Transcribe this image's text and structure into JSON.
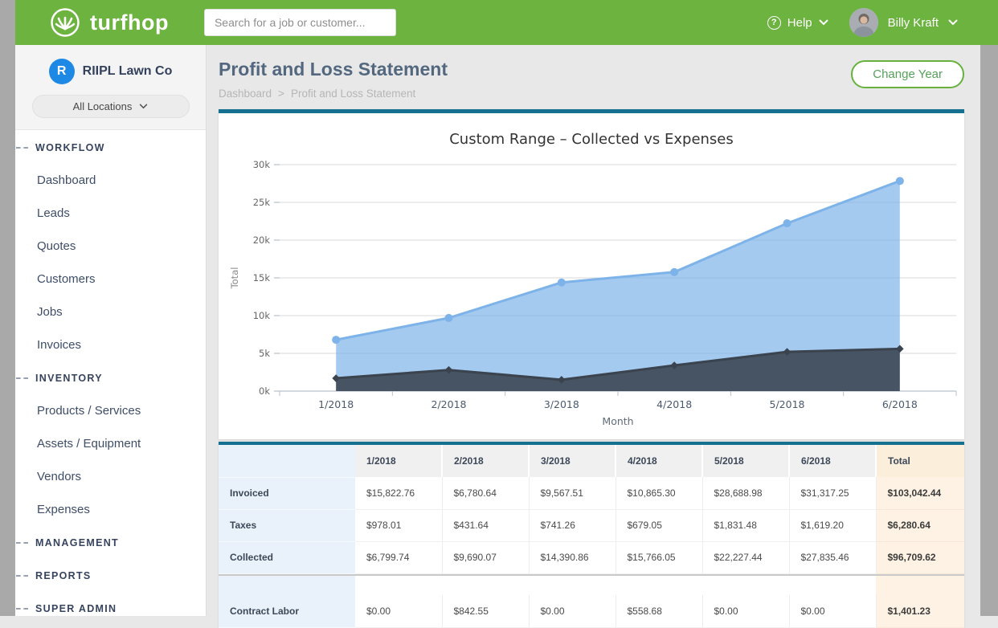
{
  "header": {
    "brand": "turfhop",
    "search_placeholder": "Search for a job or customer...",
    "help_icon": "?",
    "help_label": "Help",
    "user_name": "Billy Kraft"
  },
  "sidebar": {
    "company_initial": "R",
    "company": "RIIPL Lawn Co",
    "location_selector": "All Locations",
    "sections": [
      {
        "label": "WORKFLOW",
        "items": [
          "Dashboard",
          "Leads",
          "Quotes",
          "Customers",
          "Jobs",
          "Invoices"
        ]
      },
      {
        "label": "INVENTORY",
        "items": [
          "Products / Services",
          "Assets / Equipment",
          "Vendors",
          "Expenses"
        ]
      },
      {
        "label": "MANAGEMENT",
        "items": []
      },
      {
        "label": "REPORTS",
        "items": []
      },
      {
        "label": "SUPER ADMIN",
        "items": []
      }
    ]
  },
  "page": {
    "title": "Profit and Loss Statement",
    "breadcrumb": [
      "Dashboard",
      "Profit and Loss Statement"
    ],
    "breadcrumb_sep": ">",
    "change_year_label": "Change Year"
  },
  "chart_data": {
    "type": "area",
    "title": "Custom Range – Collected vs Expenses",
    "xlabel": "Month",
    "ylabel": "Total",
    "categories": [
      "1/2018",
      "2/2018",
      "3/2018",
      "4/2018",
      "5/2018",
      "6/2018"
    ],
    "series": [
      {
        "name": "Collected",
        "color": "#7eb3e9",
        "fill_opacity": 0.7,
        "marker": "circle",
        "values": [
          6799.74,
          9690.07,
          14390.86,
          15766.05,
          22227.44,
          27835.46
        ]
      },
      {
        "name": "Expenses",
        "color": "#3a434e",
        "fill_opacity": 0.88,
        "marker": "diamond",
        "values": [
          1700,
          2800,
          1500,
          3400,
          5200,
          5600
        ]
      }
    ],
    "ylim": [
      0,
      30000
    ],
    "yticks": [
      "0k",
      "5k",
      "10k",
      "15k",
      "20k",
      "25k",
      "30k"
    ],
    "grid": true,
    "legend": "none"
  },
  "table": {
    "columns": [
      "",
      "1/2018",
      "2/2018",
      "3/2018",
      "4/2018",
      "5/2018",
      "6/2018",
      "Total"
    ],
    "groups": [
      {
        "rows": [
          {
            "label": "Invoiced",
            "values": [
              "$15,822.76",
              "$6,780.64",
              "$9,567.51",
              "$10,865.30",
              "$28,688.98",
              "$31,317.25"
            ],
            "total": "$103,042.44"
          },
          {
            "label": "Taxes",
            "values": [
              "$978.01",
              "$431.64",
              "$741.26",
              "$679.05",
              "$1,831.48",
              "$1,619.20"
            ],
            "total": "$6,280.64"
          },
          {
            "label": "Collected",
            "values": [
              "$6,799.74",
              "$9,690.07",
              "$14,390.86",
              "$15,766.05",
              "$22,227.44",
              "$27,835.46"
            ],
            "total": "$96,709.62"
          }
        ]
      },
      {
        "rows": [
          {
            "label": "Contract Labor",
            "values": [
              "$0.00",
              "$842.55",
              "$0.00",
              "$558.68",
              "$0.00",
              "$0.00"
            ],
            "total": "$1,401.23"
          }
        ]
      }
    ]
  },
  "colors": {
    "header_green": "#6cb33f",
    "accent_teal": "#15718f",
    "gutter_gray": "#a9a9a9",
    "collected_blue": "#7eb3e9",
    "expenses_dark": "#3a434e",
    "table_label_bg": "#e9f2fb",
    "table_total_bg": "#fdf2e3",
    "company_logo_blue": "#1e88e5"
  }
}
